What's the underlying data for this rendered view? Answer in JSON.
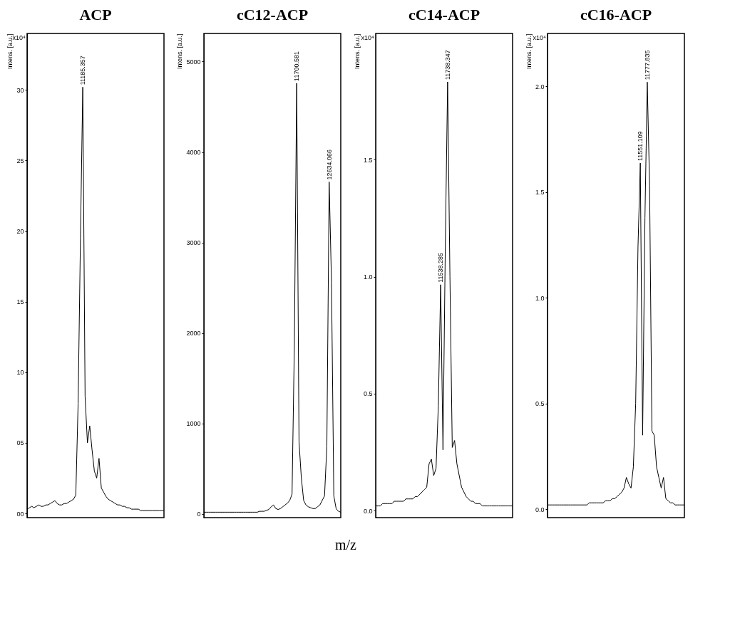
{
  "chart_data": [
    {
      "type": "line",
      "title": "ACP",
      "ylabel": "Intens. [a.u.]",
      "tick_labels": "y",
      "grid": false,
      "ylim": [
        -0.3,
        34
      ],
      "yticks": [
        {
          "value": 0,
          "label": "00"
        },
        {
          "value": 5,
          "label": "05"
        },
        10,
        15,
        20,
        25,
        30
      ],
      "categories": [
        null,
        null,
        null,
        null,
        null,
        null,
        null,
        null,
        null,
        null,
        null,
        null,
        null,
        null,
        null,
        null,
        null,
        null,
        null,
        null,
        null,
        null,
        null,
        null,
        null,
        null,
        null,
        null,
        null,
        null,
        null,
        null,
        null,
        null,
        null,
        null,
        null,
        null,
        null,
        null,
        null,
        null,
        null,
        null,
        null,
        null,
        null,
        null,
        null,
        null,
        null,
        null,
        null,
        null,
        null,
        null,
        null,
        null,
        null,
        null
      ],
      "series": [
        {
          "color": "#000000",
          "values": [
            0.3,
            0.4,
            0.5,
            0.4,
            0.5,
            0.6,
            0.5,
            0.5,
            0.6,
            0.6,
            0.7,
            0.8,
            0.9,
            0.7,
            0.6,
            0.6,
            0.7,
            0.7,
            0.8,
            0.9,
            1.0,
            1.3,
            7.8,
            19.5,
            30.2,
            8.3,
            5.0,
            6.2,
            4.5,
            3.0,
            2.5,
            3.9,
            1.8,
            1.5,
            1.2,
            1.0,
            0.9,
            0.8,
            0.7,
            0.6,
            0.6,
            0.5,
            0.5,
            0.4,
            0.4,
            0.3,
            0.3,
            0.3,
            0.3,
            0.2,
            0.2,
            0.2,
            0.2,
            0.2,
            0.2,
            0.2,
            0.2,
            0.2,
            0.2,
            0.2
          ]
        }
      ],
      "annotations": [
        {
          "text": "11185.357",
          "y": 30.2
        },
        "x10⁴"
      ]
    },
    {
      "type": "line",
      "title": "cC12-ACP",
      "ylabel": "Intens. [a.u.]",
      "xlabel": "m/z",
      "tick_labels": "y",
      "grid": false,
      "ylim": [
        -40,
        5310
      ],
      "yticks": [
        0,
        1000,
        2000,
        3000,
        4000,
        5000
      ],
      "categories": [
        null,
        null,
        null,
        null,
        null,
        null,
        null,
        null,
        null,
        null,
        null,
        null,
        null,
        null,
        null,
        null,
        null,
        null,
        null,
        null,
        null,
        null,
        null,
        null,
        null,
        null,
        null,
        null,
        null,
        null,
        null,
        null,
        null,
        null,
        null,
        null,
        null,
        null,
        null,
        null,
        null,
        null,
        null,
        null,
        null,
        null,
        null,
        null,
        null,
        null,
        null,
        null,
        null,
        null,
        null,
        null,
        null,
        null,
        null,
        null
      ],
      "series": [
        {
          "color": "#000000",
          "values": [
            20,
            20,
            20,
            20,
            20,
            20,
            20,
            20,
            20,
            20,
            20,
            20,
            20,
            20,
            20,
            20,
            20,
            20,
            20,
            20,
            20,
            20,
            20,
            20,
            30,
            30,
            30,
            40,
            50,
            80,
            100,
            60,
            50,
            60,
            80,
            100,
            120,
            150,
            220,
            1880,
            4760,
            800,
            400,
            150,
            100,
            80,
            70,
            60,
            60,
            80,
            100,
            150,
            200,
            750,
            3670,
            2560,
            200,
            60,
            30,
            20
          ]
        }
      ],
      "annotations": [
        {
          "text": "11700.581",
          "y": 4760
        },
        {
          "text": "12634.066",
          "y": 3670
        }
      ]
    },
    {
      "type": "line",
      "title": "cC14-ACP",
      "ylabel": "Intens. [a.u.]",
      "tick_labels": "y",
      "grid": false,
      "ylim": [
        -0.03,
        2.04
      ],
      "yticks": [
        {
          "value": 0,
          "label": "0.0"
        },
        0.5,
        {
          "value": 1,
          "label": "1.0"
        },
        1.5
      ],
      "categories": [
        null,
        null,
        null,
        null,
        null,
        null,
        null,
        null,
        null,
        null,
        null,
        null,
        null,
        null,
        null,
        null,
        null,
        null,
        null,
        null,
        null,
        null,
        null,
        null,
        null,
        null,
        null,
        null,
        null,
        null,
        null,
        null,
        null,
        null,
        null,
        null,
        null,
        null,
        null,
        null,
        null,
        null,
        null,
        null,
        null,
        null,
        null,
        null,
        null,
        null,
        null,
        null,
        null,
        null,
        null,
        null,
        null,
        null,
        null,
        null
      ],
      "series": [
        {
          "color": "#000000",
          "values": [
            0.02,
            0.02,
            0.02,
            0.03,
            0.03,
            0.03,
            0.03,
            0.03,
            0.04,
            0.04,
            0.04,
            0.04,
            0.04,
            0.05,
            0.05,
            0.05,
            0.05,
            0.06,
            0.06,
            0.07,
            0.08,
            0.09,
            0.1,
            0.2,
            0.22,
            0.15,
            0.18,
            0.45,
            0.966,
            0.26,
            1.13,
            1.833,
            1.0,
            0.27,
            0.3,
            0.2,
            0.15,
            0.1,
            0.08,
            0.06,
            0.05,
            0.04,
            0.04,
            0.03,
            0.03,
            0.03,
            0.02,
            0.02,
            0.02,
            0.02,
            0.02,
            0.02,
            0.02,
            0.02,
            0.02,
            0.02,
            0.02,
            0.02,
            0.02,
            0.02
          ]
        }
      ],
      "annotations": [
        {
          "text": "11738.347",
          "y": 1.833
        },
        {
          "text": "11538.285",
          "y": 0.966
        },
        "x10⁴"
      ]
    },
    {
      "type": "line",
      "title": "cC16-ACP",
      "ylabel": "Intens. [a.u.]",
      "tick_labels": "y",
      "grid": false,
      "ylim": [
        -0.04,
        2.25
      ],
      "yticks": [
        {
          "value": 0,
          "label": "0.0"
        },
        0.5,
        {
          "value": 1,
          "label": "1.0"
        },
        1.5,
        {
          "value": 2,
          "label": "2.0"
        }
      ],
      "categories": [
        null,
        null,
        null,
        null,
        null,
        null,
        null,
        null,
        null,
        null,
        null,
        null,
        null,
        null,
        null,
        null,
        null,
        null,
        null,
        null,
        null,
        null,
        null,
        null,
        null,
        null,
        null,
        null,
        null,
        null,
        null,
        null,
        null,
        null,
        null,
        null,
        null,
        null,
        null,
        null,
        null,
        null,
        null,
        null,
        null,
        null,
        null,
        null,
        null,
        null,
        null,
        null,
        null,
        null,
        null,
        null,
        null,
        null,
        null,
        null
      ],
      "series": [
        {
          "color": "#000000",
          "values": [
            0.02,
            0.02,
            0.02,
            0.02,
            0.02,
            0.02,
            0.02,
            0.02,
            0.02,
            0.02,
            0.02,
            0.02,
            0.02,
            0.02,
            0.02,
            0.02,
            0.02,
            0.02,
            0.03,
            0.03,
            0.03,
            0.03,
            0.03,
            0.03,
            0.03,
            0.04,
            0.04,
            0.04,
            0.05,
            0.05,
            0.06,
            0.07,
            0.08,
            0.1,
            0.15,
            0.12,
            0.1,
            0.2,
            0.5,
            1.24,
            1.637,
            0.35,
            1.38,
            2.02,
            1.53,
            0.37,
            0.35,
            0.2,
            0.15,
            0.1,
            0.15,
            0.05,
            0.04,
            0.03,
            0.03,
            0.02,
            0.02,
            0.02,
            0.02,
            0.02
          ]
        }
      ],
      "annotations": [
        {
          "text": "11777.835",
          "y": 2.02
        },
        {
          "text": "11551.109",
          "y": 1.637
        },
        "x10⁴"
      ]
    }
  ]
}
